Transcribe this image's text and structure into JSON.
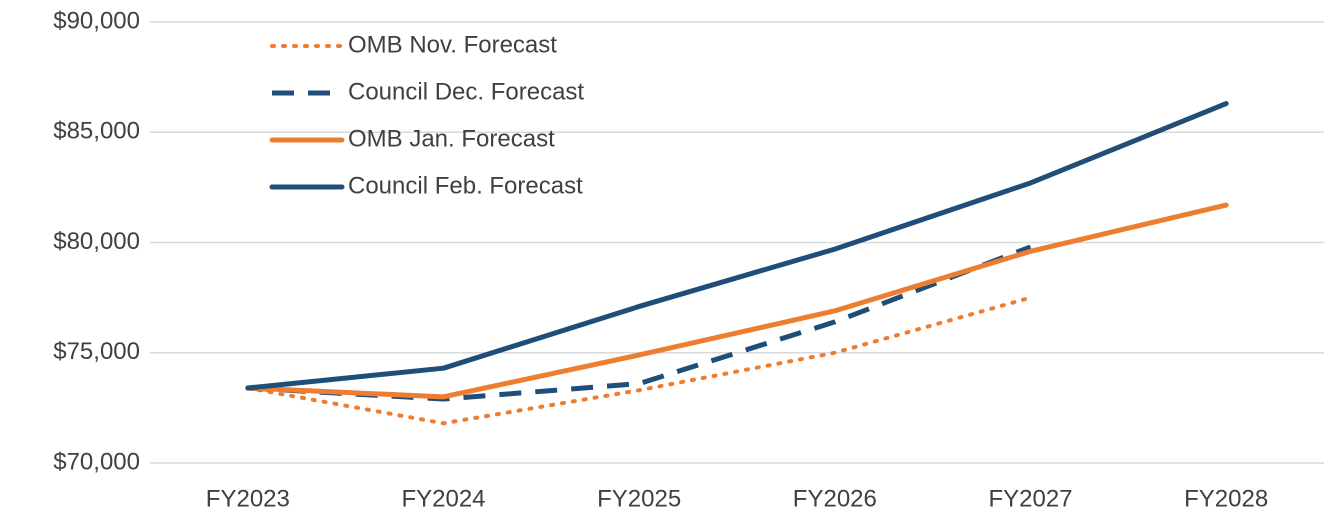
{
  "chart_data": {
    "type": "line",
    "categories": [
      "FY2023",
      "FY2024",
      "FY2025",
      "FY2026",
      "FY2027",
      "FY2028"
    ],
    "series": [
      {
        "name": "OMB Nov. Forecast",
        "color": "#ed7d31",
        "dash": "dotted",
        "values": [
          73400,
          71800,
          73300,
          75000,
          77500,
          null
        ]
      },
      {
        "name": "Council Dec. Forecast",
        "color": "#1f4e79",
        "dash": "dashed",
        "values": [
          73400,
          72900,
          73600,
          76400,
          79800,
          null
        ]
      },
      {
        "name": "OMB Jan. Forecast",
        "color": "#ed7d31",
        "dash": "solid",
        "values": [
          73400,
          73000,
          74900,
          76900,
          79600,
          81700
        ]
      },
      {
        "name": "Council Feb. Forecast",
        "color": "#1f4e79",
        "dash": "solid",
        "values": [
          73400,
          74300,
          77100,
          79700,
          82700,
          86300
        ]
      }
    ],
    "ylim": [
      70000,
      90000
    ],
    "yticks": [
      {
        "value": 70000,
        "label": "$70,000"
      },
      {
        "value": 75000,
        "label": "$75,000"
      },
      {
        "value": 80000,
        "label": "$80,000"
      },
      {
        "value": 85000,
        "label": "$85,000"
      },
      {
        "value": 90000,
        "label": "$90,000"
      }
    ],
    "grid": true,
    "legend": "upper left"
  }
}
